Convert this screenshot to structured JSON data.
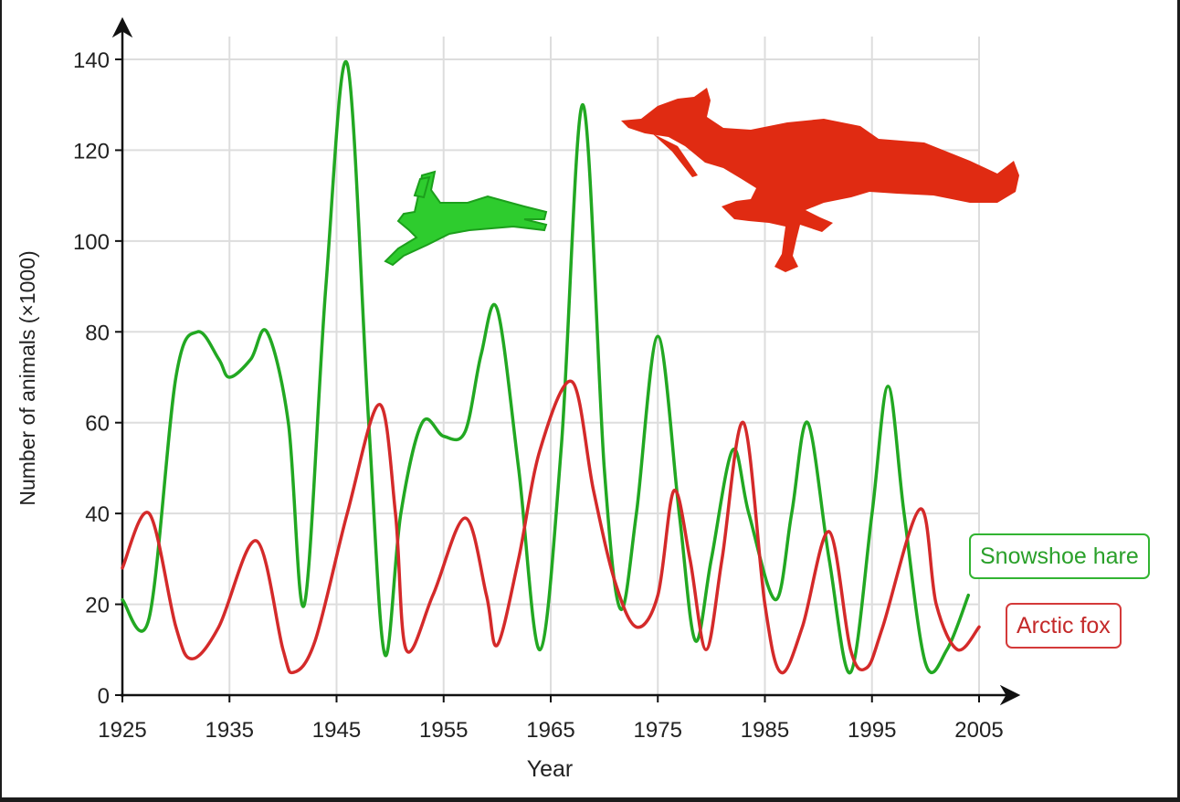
{
  "chart_data": {
    "type": "line",
    "title": "",
    "xlabel": "Year",
    "ylabel": "Number of animals (×1000)",
    "xlim": [
      1925,
      2005
    ],
    "ylim": [
      0,
      140
    ],
    "xticks": [
      1925,
      1935,
      1945,
      1955,
      1965,
      1975,
      1985,
      1995,
      2005
    ],
    "yticks": [
      0,
      20,
      40,
      60,
      80,
      100,
      120,
      140
    ],
    "grid": true,
    "legend_position": "right",
    "series": [
      {
        "name": "Snowshoe hare",
        "color": "#22a822",
        "x": [
          1925,
          1927.5,
          1930,
          1932,
          1934,
          1935,
          1937,
          1938.5,
          1940.5,
          1942,
          1944,
          1946,
          1948,
          1949.5,
          1951,
          1953,
          1955,
          1957,
          1958.5,
          1960,
          1962,
          1964,
          1966,
          1968,
          1970,
          1971.5,
          1973,
          1975,
          1977,
          1978.5,
          1980,
          1982,
          1983.5,
          1986,
          1987.5,
          1989,
          1991,
          1993,
          1995,
          1996.5,
          1998,
          2000,
          2002,
          2004
        ],
        "y": [
          21,
          17,
          70,
          80,
          74,
          70,
          74,
          80,
          60,
          20,
          90,
          139,
          60,
          9,
          40,
          60,
          57,
          58,
          75,
          85,
          50,
          10,
          55,
          130,
          50,
          19,
          40,
          79,
          40,
          12,
          30,
          54,
          40,
          21,
          40,
          60,
          30,
          5,
          40,
          68,
          40,
          7,
          10,
          22
        ]
      },
      {
        "name": "Arctic fox",
        "color": "#d42a2a",
        "x": [
          1925,
          1927.5,
          1930,
          1931.5,
          1934,
          1937.5,
          1940,
          1941,
          1943,
          1946,
          1949,
          1950.5,
          1951.5,
          1954,
          1957,
          1959,
          1960,
          1962,
          1964,
          1967,
          1969,
          1971,
          1973,
          1975,
          1976.5,
          1978,
          1979.5,
          1981,
          1983,
          1985,
          1986.5,
          1988.5,
          1991,
          1993,
          1994.5,
          1996,
          1999.5,
          2001,
          2003,
          2005
        ],
        "y": [
          28,
          40,
          15,
          8,
          15,
          34,
          10,
          5,
          12,
          40,
          64,
          40,
          10,
          22,
          39,
          22,
          11,
          30,
          54,
          69,
          45,
          25,
          15,
          22,
          45,
          30,
          10,
          30,
          60,
          20,
          5,
          15,
          36,
          10,
          6,
          15,
          41,
          20,
          10,
          15
        ]
      }
    ],
    "illustrations": [
      "running-hare-silhouette",
      "running-fox-silhouette"
    ]
  }
}
